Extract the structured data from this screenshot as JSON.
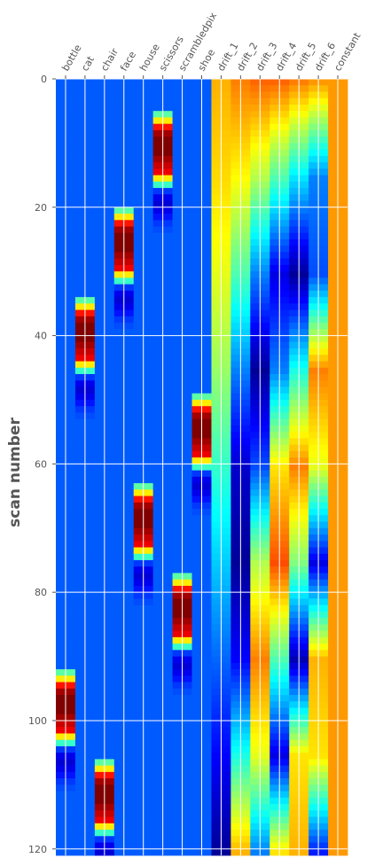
{
  "chart_data": {
    "type": "heatmap",
    "colormap": "jet",
    "ylabel": "scan number",
    "xlabel": "",
    "columns": [
      "bottle",
      "cat",
      "chair",
      "face",
      "house",
      "scissors",
      "scrambledpix",
      "shoe",
      "drift_1",
      "drift_2",
      "drift_3",
      "drift_4",
      "drift_5",
      "drift_6",
      "constant"
    ],
    "y_ticks": [
      0,
      20,
      40,
      60,
      80,
      100,
      120
    ],
    "ylim": [
      0,
      121
    ],
    "n_scans": 121,
    "grid": true,
    "value_range": [
      -1,
      1
    ],
    "condition_value_range": [
      -0.3,
      1.1
    ],
    "condition_response": [
      0.35,
      0.6,
      0.9,
      1.05,
      1.1,
      1.1,
      1.1,
      1.05,
      1.0,
      0.95,
      0.6,
      0.3,
      -0.05,
      -0.15,
      -0.18,
      -0.15,
      -0.1,
      -0.05,
      -0.02
    ],
    "condition_onsets": {
      "bottle": 92,
      "cat": 34,
      "chair": 106,
      "face": 20,
      "house": 63,
      "scissors": 5,
      "scrambledpix": 77,
      "shoe": 49
    },
    "drift_values": {
      "drift_1": [
        0.4,
        0.32,
        0.2,
        0.05,
        -0.15,
        -0.35,
        -0.55,
        -0.75,
        -0.95
      ],
      "drift_2": [
        0.5,
        0.25,
        -0.1,
        -0.5,
        -0.85,
        -0.95,
        -0.75,
        -0.2,
        0.4
      ],
      "drift_3": [
        0.55,
        0.1,
        -0.5,
        -0.95,
        -0.6,
        0.1,
        0.5,
        0.2,
        -0.5
      ],
      "drift_4": [
        0.55,
        -0.1,
        -0.8,
        -0.5,
        0.3,
        0.6,
        -0.1,
        -0.8,
        0.3
      ],
      "drift_5": [
        0.5,
        -0.3,
        -0.95,
        -0.2,
        0.5,
        0.0,
        -0.9,
        0.3,
        0.4
      ],
      "drift_6": [
        0.45,
        -0.5,
        -0.6,
        0.5,
        0.2,
        -0.8,
        0.4,
        0.3,
        -0.7
      ],
      "constant": [
        0.45,
        0.45
      ]
    }
  }
}
